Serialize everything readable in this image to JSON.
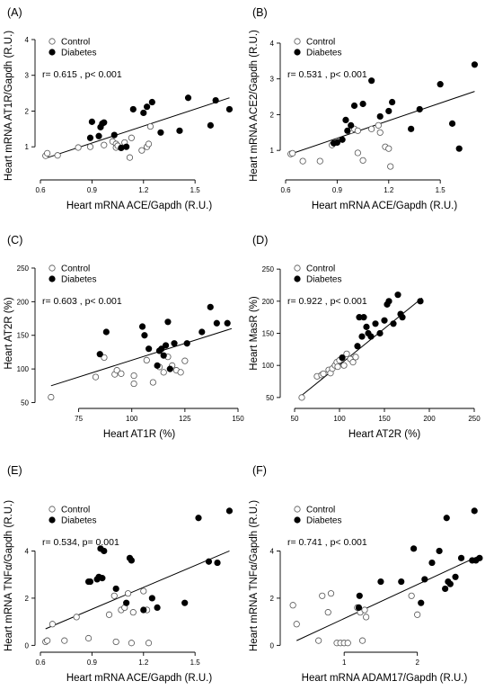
{
  "chart_data": [
    {
      "panel_label": "(A)",
      "type": "scatter",
      "xlabel": "Heart mRNA ACE/Gapdh (R.U.)",
      "ylabel": "Heart mRNA AT1R/Gapdh (R.U.)",
      "xlim": [
        0.6,
        1.75
      ],
      "ylim": [
        0.2,
        4.1
      ],
      "xticks": [
        0.6,
        0.9,
        1.2,
        1.5
      ],
      "yticks": [
        1,
        2,
        3,
        4
      ],
      "xtick_labels": [
        "0.6",
        "0.9",
        "1.2",
        "1.5"
      ],
      "ytick_labels": [
        "1",
        "2",
        "3",
        "4"
      ],
      "legend": [
        "Control",
        "Diabetes"
      ],
      "annotation": "r=  0.615 , p< 0.001",
      "fit": {
        "x": [
          0.63,
          1.7
        ],
        "y": [
          0.68,
          2.37
        ]
      },
      "series": [
        {
          "name": "Control",
          "marker": "open",
          "x": [
            0.63,
            0.64,
            0.7,
            0.82,
            0.89,
            0.97,
            1.02,
            1.04,
            1.04,
            1.05,
            1.09,
            1.12,
            1.13,
            1.19,
            1.22,
            1.23,
            1.24
          ],
          "y": [
            0.75,
            0.82,
            0.76,
            0.98,
            1.0,
            1.05,
            1.15,
            1.08,
            0.98,
            1.03,
            1.12,
            0.7,
            1.25,
            0.9,
            1.0,
            1.08,
            1.57
          ]
        },
        {
          "name": "Diabetes",
          "marker": "filled",
          "x": [
            0.89,
            0.9,
            0.94,
            0.95,
            0.96,
            0.97,
            1.03,
            1.07,
            1.1,
            1.14,
            1.2,
            1.22,
            1.25,
            1.3,
            1.41,
            1.46,
            1.59,
            1.62,
            1.7
          ],
          "y": [
            1.25,
            1.7,
            1.3,
            1.55,
            1.65,
            1.68,
            1.33,
            0.97,
            1.0,
            2.05,
            1.95,
            2.12,
            2.25,
            1.4,
            1.45,
            2.37,
            1.6,
            2.3,
            2.05
          ]
        }
      ]
    },
    {
      "panel_label": "(B)",
      "type": "scatter",
      "xlabel": "Heart mRNA ACE/Gapdh (R.U.)",
      "ylabel": "Heart mRNA ACE2/Gapdh (R.U.)",
      "xlim": [
        0.6,
        1.75
      ],
      "ylim": [
        0.3,
        4.2
      ],
      "xticks": [
        0.6,
        0.9,
        1.2,
        1.5
      ],
      "yticks": [
        1,
        2,
        3,
        4
      ],
      "xtick_labels": [
        "0.6",
        "0.9",
        "1.2",
        "1.5"
      ],
      "ytick_labels": [
        "1",
        "2",
        "3",
        "4"
      ],
      "legend": [
        "Control",
        "Diabetes"
      ],
      "annotation": "r=  0.531 , p< 0.001",
      "fit": {
        "x": [
          0.63,
          1.7
        ],
        "y": [
          0.9,
          2.65
        ]
      },
      "series": [
        {
          "name": "Control",
          "marker": "open",
          "x": [
            0.63,
            0.64,
            0.7,
            0.8,
            0.87,
            0.9,
            0.98,
            1.0,
            1.02,
            1.02,
            1.05,
            1.1,
            1.14,
            1.15,
            1.18,
            1.2,
            1.21
          ],
          "y": [
            0.9,
            0.92,
            0.7,
            0.7,
            1.15,
            1.25,
            1.55,
            1.6,
            1.55,
            0.93,
            0.72,
            1.6,
            1.7,
            1.5,
            1.1,
            1.05,
            0.55
          ]
        },
        {
          "name": "Diabetes",
          "marker": "filled",
          "x": [
            0.88,
            0.9,
            0.93,
            0.95,
            0.96,
            0.98,
            1.0,
            1.05,
            1.1,
            1.15,
            1.2,
            1.22,
            1.33,
            1.38,
            1.5,
            1.57,
            1.61,
            1.7
          ],
          "y": [
            1.2,
            1.22,
            1.3,
            1.85,
            1.55,
            1.7,
            2.25,
            2.3,
            2.95,
            1.95,
            2.1,
            2.35,
            1.6,
            2.15,
            2.85,
            1.75,
            1.05,
            3.4
          ]
        }
      ]
    },
    {
      "panel_label": "(C)",
      "type": "scatter",
      "xlabel": "Heart AT1R (%)",
      "ylabel": "Heart AT2R (%)",
      "xlim": [
        57,
        150
      ],
      "ylim": [
        48,
        258
      ],
      "xticks": [
        75,
        100,
        125,
        150
      ],
      "yticks": [
        50,
        100,
        150,
        200,
        250
      ],
      "xtick_labels": [
        "75",
        "100",
        "125",
        "150"
      ],
      "ytick_labels": [
        "50",
        "100",
        "150",
        "200",
        "250"
      ],
      "legend": [
        "Control",
        "Diabetes"
      ],
      "annotation": "r=  0.603 , p< 0.001",
      "fit": {
        "x": [
          62,
          147
        ],
        "y": [
          75,
          160
        ]
      },
      "series": [
        {
          "name": "Control",
          "marker": "open",
          "x": [
            62,
            83,
            87,
            92,
            93,
            95,
            101,
            101,
            107,
            110,
            113,
            115,
            117,
            119,
            121,
            123,
            125
          ],
          "y": [
            58,
            88,
            117,
            92,
            98,
            93,
            90,
            78,
            113,
            80,
            103,
            95,
            118,
            105,
            98,
            95,
            112
          ]
        },
        {
          "name": "Diabetes",
          "marker": "filled",
          "x": [
            85,
            88,
            105,
            106,
            108,
            112,
            113,
            114,
            115,
            116,
            117,
            118,
            120,
            126,
            133,
            137,
            140,
            145
          ],
          "y": [
            122,
            155,
            163,
            150,
            130,
            105,
            127,
            130,
            120,
            135,
            170,
            100,
            138,
            138,
            155,
            192,
            168,
            168
          ]
        }
      ]
    },
    {
      "panel_label": "(D)",
      "type": "scatter",
      "xlabel": "Heart AT2R (%)",
      "ylabel": "Heart MasR (%)",
      "xlim": [
        40,
        260
      ],
      "ylim": [
        40,
        260
      ],
      "xticks": [
        50,
        100,
        150,
        200,
        250
      ],
      "yticks": [
        50,
        100,
        150,
        200,
        250
      ],
      "xtick_labels": [
        "50",
        "100",
        "150",
        "200",
        "250"
      ],
      "ytick_labels": [
        "50",
        "100",
        "150",
        "200",
        "250"
      ],
      "legend": [
        "Control",
        "Diabetes"
      ],
      "annotation": "r=  0.922 , p< 0.001",
      "fit": {
        "x": [
          55,
          192
        ],
        "y": [
          50,
          205
        ]
      },
      "series": [
        {
          "name": "Control",
          "marker": "open",
          "x": [
            58,
            75,
            80,
            82,
            88,
            90,
            92,
            95,
            97,
            98,
            100,
            103,
            105,
            108,
            112,
            115,
            118
          ],
          "y": [
            50,
            83,
            85,
            87,
            93,
            88,
            95,
            100,
            105,
            98,
            108,
            112,
            100,
            118,
            110,
            105,
            113
          ]
        },
        {
          "name": "Diabetes",
          "marker": "filled",
          "x": [
            103,
            120,
            122,
            125,
            127,
            130,
            132,
            135,
            140,
            145,
            150,
            153,
            155,
            160,
            165,
            168,
            170,
            190
          ],
          "y": [
            112,
            130,
            175,
            145,
            175,
            160,
            150,
            145,
            165,
            150,
            170,
            195,
            200,
            165,
            210,
            180,
            175,
            200
          ]
        }
      ]
    },
    {
      "panel_label": "(E)",
      "type": "scatter",
      "xlabel": "Heart mRNA ACE/Gapdh (R.U.)",
      "ylabel": "Heart mRNA TNFα/Gapdh (R.U.)",
      "xlim": [
        0.6,
        1.75
      ],
      "ylim": [
        -0.1,
        6.0
      ],
      "xticks": [
        0.6,
        0.9,
        1.2,
        1.5
      ],
      "yticks": [
        0,
        2,
        4
      ],
      "xtick_labels": [
        "0.6",
        "0.9",
        "1.2",
        "1.5"
      ],
      "ytick_labels": [
        "0",
        "2",
        "4"
      ],
      "legend": [
        "Control",
        "Diabetes"
      ],
      "annotation": "r=  0.534, p= 0.001",
      "fit": {
        "x": [
          0.63,
          1.7
        ],
        "y": [
          0.7,
          4.0
        ]
      },
      "series": [
        {
          "name": "Control",
          "marker": "open",
          "x": [
            0.63,
            0.64,
            0.67,
            0.74,
            0.81,
            0.88,
            1.0,
            1.03,
            1.04,
            1.07,
            1.09,
            1.11,
            1.13,
            1.14,
            1.2,
            1.22,
            1.23
          ],
          "y": [
            0.15,
            0.2,
            0.9,
            0.2,
            1.2,
            0.3,
            1.3,
            2.1,
            0.15,
            1.5,
            1.6,
            2.2,
            0.1,
            1.4,
            2.3,
            1.5,
            0.1
          ]
        },
        {
          "name": "Diabetes",
          "marker": "filled",
          "x": [
            0.88,
            0.89,
            0.93,
            0.94,
            0.95,
            0.96,
            0.97,
            1.04,
            1.1,
            1.12,
            1.13,
            1.2,
            1.25,
            1.28,
            1.44,
            1.52,
            1.58,
            1.63,
            1.7
          ],
          "y": [
            2.7,
            2.7,
            2.8,
            2.9,
            4.1,
            2.85,
            4.0,
            2.4,
            1.8,
            3.7,
            3.6,
            1.5,
            2.0,
            1.6,
            1.8,
            5.4,
            3.55,
            3.5,
            5.7
          ]
        }
      ]
    },
    {
      "panel_label": "(F)",
      "type": "scatter",
      "xlabel": "Heart mRNA ADAM17/Gapdh (R.U.)",
      "ylabel": "Heart mRNA TNFα/Gapdh (R.U.)",
      "xlim": [
        0.2,
        2.9
      ],
      "ylim": [
        -0.1,
        6.0
      ],
      "xticks": [
        1,
        2
      ],
      "yticks": [
        0,
        2,
        4
      ],
      "xtick_labels": [
        "1",
        "2"
      ],
      "ytick_labels": [
        "0",
        "2",
        "4"
      ],
      "legend": [
        "Control",
        "Diabetes"
      ],
      "annotation": "r=  0.741 , p< 0.001",
      "fit": {
        "x": [
          0.35,
          2.85
        ],
        "y": [
          0.2,
          3.8
        ]
      },
      "series": [
        {
          "name": "Control",
          "marker": "open",
          "x": [
            0.3,
            0.35,
            0.65,
            0.7,
            0.78,
            0.82,
            0.9,
            0.95,
            1.0,
            1.05,
            1.18,
            1.22,
            1.25,
            1.28,
            1.3,
            1.92,
            2.0
          ],
          "y": [
            1.7,
            0.9,
            0.2,
            2.1,
            1.4,
            2.2,
            0.1,
            0.1,
            0.1,
            0.1,
            1.6,
            1.4,
            0.2,
            1.5,
            1.2,
            2.1,
            1.3
          ]
        },
        {
          "name": "Diabetes",
          "marker": "filled",
          "x": [
            1.2,
            1.21,
            1.5,
            1.78,
            1.95,
            2.05,
            2.1,
            2.2,
            2.3,
            2.38,
            2.4,
            2.42,
            2.45,
            2.52,
            2.6,
            2.75,
            2.78,
            2.8,
            2.85
          ],
          "y": [
            1.6,
            2.1,
            2.7,
            2.7,
            4.1,
            1.8,
            2.8,
            3.5,
            4.0,
            2.4,
            5.4,
            2.7,
            2.6,
            2.9,
            3.7,
            3.6,
            5.7,
            3.6,
            3.7
          ]
        }
      ]
    }
  ]
}
